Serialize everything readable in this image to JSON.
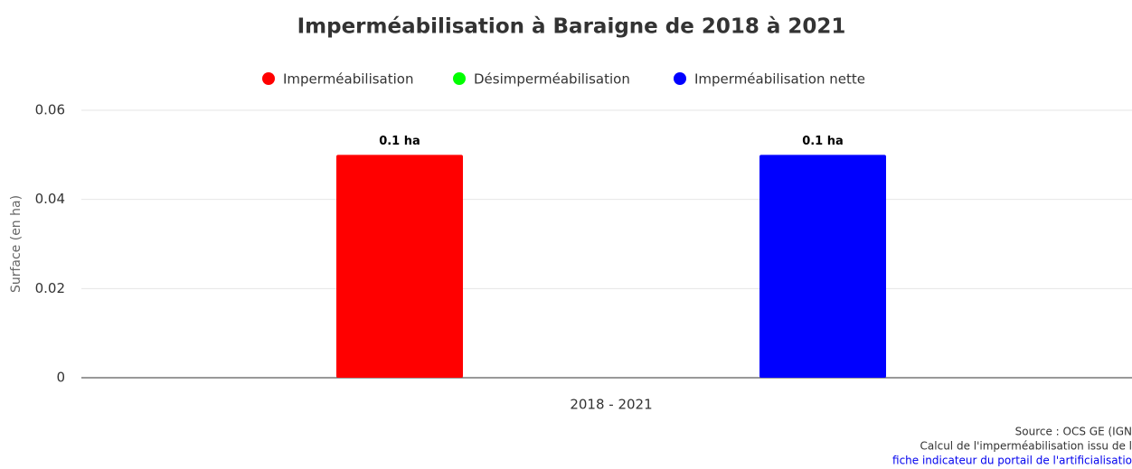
{
  "chart_data": {
    "type": "bar",
    "title": "Imperméabilisation à Baraigne de 2018 à 2021",
    "y_label": "Surface (en ha)",
    "categories": [
      "2018 - 2021"
    ],
    "series": [
      {
        "name": "Imperméabilisation",
        "color": "#ff0000",
        "values": [
          0.05
        ],
        "value_labels": [
          "0.1 ha"
        ]
      },
      {
        "name": "Désimperméabilisation",
        "color": "#00ff00",
        "values": [
          0
        ],
        "value_labels": [
          null
        ]
      },
      {
        "name": "Imperméabilisation nette",
        "color": "#0000ff",
        "values": [
          0.05
        ],
        "value_labels": [
          "0.1 ha"
        ]
      }
    ],
    "ylim": [
      0,
      0.06
    ],
    "yticks": [
      0,
      0.02,
      0.04,
      0.06
    ],
    "grid": true,
    "legend": "top",
    "credits": [
      "Source : OCS GE (IGN",
      "Calcul de l'imperméabilisation issu de l",
      "fiche indicateur du portail de l'artificialisatio"
    ]
  }
}
